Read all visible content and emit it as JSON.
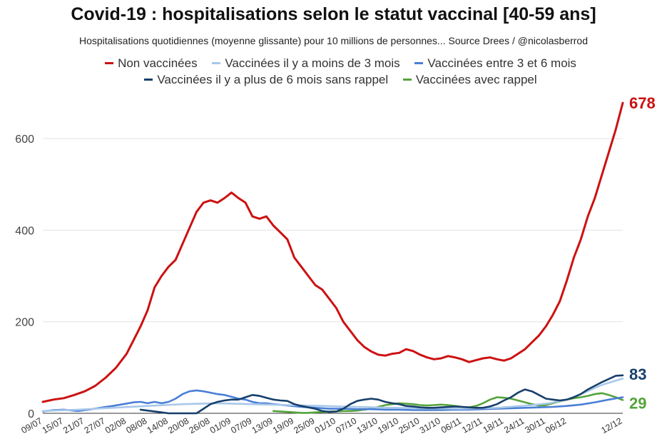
{
  "chart_data": {
    "type": "line",
    "title": "Covid-19 : hospitalisations selon le statut vaccinal [40-59 ans]",
    "subtitle": "Hospitalisations quotidiennes (moyenne glissante) pour 10 millions de personnes... Source Drees / @nicolasberrod",
    "xlabel": "",
    "ylabel": "",
    "ylim": [
      0,
      700
    ],
    "yticks": [
      0,
      200,
      400,
      600
    ],
    "grid": true,
    "legend_position": "top",
    "x_tick_labels": [
      "09/07",
      "15/07",
      "21/07",
      "27/07",
      "02/08",
      "08/08",
      "14/08",
      "20/08",
      "26/08",
      "01/09",
      "07/09",
      "13/09",
      "19/09",
      "25/09",
      "01/10",
      "07/10",
      "13/10",
      "19/10",
      "25/10",
      "31/10",
      "06/11",
      "12/11",
      "18/11",
      "24/11",
      "30/11",
      "06/12",
      "12/12"
    ],
    "n_days": 157,
    "series": [
      {
        "name": "Non vaccinées",
        "color": "#cc1111",
        "end_label": "678",
        "points": [
          [
            0,
            25
          ],
          [
            3,
            30
          ],
          [
            6,
            33
          ],
          [
            9,
            40
          ],
          [
            12,
            48
          ],
          [
            15,
            60
          ],
          [
            18,
            78
          ],
          [
            21,
            100
          ],
          [
            24,
            130
          ],
          [
            26,
            160
          ],
          [
            28,
            190
          ],
          [
            30,
            225
          ],
          [
            32,
            275
          ],
          [
            34,
            300
          ],
          [
            36,
            320
          ],
          [
            38,
            335
          ],
          [
            40,
            370
          ],
          [
            42,
            405
          ],
          [
            44,
            440
          ],
          [
            46,
            460
          ],
          [
            48,
            465
          ],
          [
            50,
            460
          ],
          [
            52,
            470
          ],
          [
            54,
            482
          ],
          [
            56,
            470
          ],
          [
            58,
            460
          ],
          [
            60,
            430
          ],
          [
            62,
            425
          ],
          [
            64,
            430
          ],
          [
            66,
            410
          ],
          [
            68,
            395
          ],
          [
            70,
            380
          ],
          [
            72,
            340
          ],
          [
            74,
            320
          ],
          [
            76,
            300
          ],
          [
            78,
            280
          ],
          [
            80,
            270
          ],
          [
            82,
            250
          ],
          [
            84,
            230
          ],
          [
            86,
            200
          ],
          [
            88,
            180
          ],
          [
            90,
            160
          ],
          [
            92,
            145
          ],
          [
            94,
            135
          ],
          [
            96,
            128
          ],
          [
            98,
            126
          ],
          [
            100,
            130
          ],
          [
            102,
            132
          ],
          [
            104,
            140
          ],
          [
            106,
            136
          ],
          [
            108,
            128
          ],
          [
            110,
            122
          ],
          [
            112,
            118
          ],
          [
            114,
            120
          ],
          [
            116,
            125
          ],
          [
            118,
            122
          ],
          [
            120,
            118
          ],
          [
            122,
            112
          ],
          [
            124,
            116
          ],
          [
            126,
            120
          ],
          [
            128,
            122
          ],
          [
            130,
            118
          ],
          [
            132,
            115
          ],
          [
            134,
            120
          ],
          [
            136,
            130
          ],
          [
            138,
            140
          ],
          [
            140,
            155
          ],
          [
            142,
            170
          ],
          [
            144,
            190
          ],
          [
            146,
            215
          ],
          [
            148,
            245
          ],
          [
            150,
            290
          ],
          [
            152,
            340
          ],
          [
            154,
            380
          ],
          [
            156,
            430
          ],
          [
            158,
            470
          ],
          [
            160,
            520
          ],
          [
            162,
            570
          ],
          [
            164,
            620
          ],
          [
            166,
            678
          ]
        ]
      },
      {
        "name": "Vaccinées il y a moins de 3 mois",
        "color": "#a9c8ea",
        "end_label": "",
        "points": [
          [
            0,
            5
          ],
          [
            10,
            8
          ],
          [
            20,
            12
          ],
          [
            30,
            16
          ],
          [
            40,
            20
          ],
          [
            50,
            22
          ],
          [
            60,
            20
          ],
          [
            70,
            18
          ],
          [
            80,
            16
          ],
          [
            90,
            14
          ],
          [
            100,
            12
          ],
          [
            110,
            11
          ],
          [
            120,
            10
          ],
          [
            130,
            12
          ],
          [
            140,
            18
          ],
          [
            145,
            22
          ],
          [
            150,
            30
          ],
          [
            155,
            45
          ],
          [
            160,
            62
          ],
          [
            166,
            76
          ]
        ]
      },
      {
        "name": "Vaccinées entre 3 et 6 mois",
        "color": "#4a7fd6",
        "end_label": "",
        "points": [
          [
            0,
            4
          ],
          [
            3,
            7
          ],
          [
            6,
            8
          ],
          [
            10,
            5
          ],
          [
            14,
            9
          ],
          [
            18,
            14
          ],
          [
            20,
            16
          ],
          [
            23,
            20
          ],
          [
            26,
            24
          ],
          [
            28,
            25
          ],
          [
            30,
            22
          ],
          [
            32,
            25
          ],
          [
            34,
            22
          ],
          [
            36,
            25
          ],
          [
            38,
            32
          ],
          [
            40,
            42
          ],
          [
            42,
            48
          ],
          [
            44,
            50
          ],
          [
            46,
            48
          ],
          [
            48,
            45
          ],
          [
            50,
            42
          ],
          [
            52,
            40
          ],
          [
            54,
            36
          ],
          [
            56,
            32
          ],
          [
            58,
            30
          ],
          [
            60,
            25
          ],
          [
            62,
            22
          ],
          [
            64,
            22
          ],
          [
            66,
            20
          ],
          [
            70,
            17
          ],
          [
            74,
            14
          ],
          [
            78,
            12
          ],
          [
            82,
            10
          ],
          [
            86,
            10
          ],
          [
            90,
            9
          ],
          [
            94,
            9
          ],
          [
            98,
            8
          ],
          [
            102,
            8
          ],
          [
            106,
            7
          ],
          [
            110,
            7
          ],
          [
            114,
            7
          ],
          [
            118,
            8
          ],
          [
            122,
            8
          ],
          [
            126,
            9
          ],
          [
            130,
            10
          ],
          [
            134,
            11
          ],
          [
            138,
            12
          ],
          [
            142,
            13
          ],
          [
            146,
            14
          ],
          [
            150,
            16
          ],
          [
            154,
            19
          ],
          [
            158,
            24
          ],
          [
            162,
            30
          ],
          [
            166,
            35
          ]
        ]
      },
      {
        "name": "Vaccinées il y a plus de 6 mois sans rappel",
        "color": "#173f6b",
        "end_label": "83",
        "points": [
          [
            28,
            8
          ],
          [
            30,
            6
          ],
          [
            32,
            4
          ],
          [
            34,
            2
          ],
          [
            36,
            0
          ],
          [
            44,
            0
          ],
          [
            46,
            10
          ],
          [
            48,
            20
          ],
          [
            50,
            25
          ],
          [
            52,
            28
          ],
          [
            54,
            30
          ],
          [
            56,
            30
          ],
          [
            58,
            35
          ],
          [
            60,
            40
          ],
          [
            62,
            38
          ],
          [
            64,
            34
          ],
          [
            66,
            30
          ],
          [
            68,
            28
          ],
          [
            70,
            27
          ],
          [
            72,
            20
          ],
          [
            74,
            16
          ],
          [
            76,
            13
          ],
          [
            78,
            10
          ],
          [
            80,
            5
          ],
          [
            82,
            3
          ],
          [
            84,
            4
          ],
          [
            86,
            10
          ],
          [
            88,
            20
          ],
          [
            90,
            27
          ],
          [
            92,
            30
          ],
          [
            94,
            32
          ],
          [
            96,
            30
          ],
          [
            98,
            25
          ],
          [
            100,
            22
          ],
          [
            102,
            20
          ],
          [
            104,
            16
          ],
          [
            106,
            15
          ],
          [
            108,
            13
          ],
          [
            110,
            12
          ],
          [
            112,
            12
          ],
          [
            114,
            13
          ],
          [
            116,
            14
          ],
          [
            118,
            15
          ],
          [
            120,
            14
          ],
          [
            122,
            13
          ],
          [
            124,
            12
          ],
          [
            126,
            12
          ],
          [
            128,
            15
          ],
          [
            130,
            20
          ],
          [
            132,
            28
          ],
          [
            134,
            35
          ],
          [
            136,
            45
          ],
          [
            138,
            52
          ],
          [
            140,
            48
          ],
          [
            142,
            40
          ],
          [
            144,
            32
          ],
          [
            146,
            30
          ],
          [
            148,
            28
          ],
          [
            150,
            30
          ],
          [
            152,
            35
          ],
          [
            154,
            42
          ],
          [
            156,
            52
          ],
          [
            158,
            60
          ],
          [
            160,
            68
          ],
          [
            162,
            75
          ],
          [
            164,
            82
          ],
          [
            166,
            83
          ]
        ]
      },
      {
        "name": "Vaccinées avec rappel",
        "color": "#55a33b",
        "end_label": "29",
        "points": [
          [
            66,
            5
          ],
          [
            68,
            4
          ],
          [
            70,
            3
          ],
          [
            72,
            2
          ],
          [
            74,
            1
          ],
          [
            76,
            1
          ],
          [
            78,
            2
          ],
          [
            80,
            3
          ],
          [
            82,
            4
          ],
          [
            84,
            4
          ],
          [
            86,
            5
          ],
          [
            88,
            5
          ],
          [
            90,
            6
          ],
          [
            92,
            8
          ],
          [
            94,
            10
          ],
          [
            96,
            14
          ],
          [
            98,
            18
          ],
          [
            100,
            20
          ],
          [
            102,
            22
          ],
          [
            104,
            21
          ],
          [
            106,
            20
          ],
          [
            108,
            18
          ],
          [
            110,
            17
          ],
          [
            112,
            18
          ],
          [
            114,
            19
          ],
          [
            116,
            18
          ],
          [
            118,
            16
          ],
          [
            120,
            14
          ],
          [
            122,
            13
          ],
          [
            124,
            16
          ],
          [
            126,
            22
          ],
          [
            128,
            30
          ],
          [
            130,
            35
          ],
          [
            132,
            34
          ],
          [
            134,
            32
          ],
          [
            136,
            28
          ],
          [
            138,
            24
          ],
          [
            140,
            20
          ],
          [
            142,
            17
          ],
          [
            144,
            18
          ],
          [
            146,
            22
          ],
          [
            148,
            26
          ],
          [
            150,
            30
          ],
          [
            152,
            33
          ],
          [
            154,
            35
          ],
          [
            156,
            38
          ],
          [
            158,
            42
          ],
          [
            160,
            44
          ],
          [
            162,
            40
          ],
          [
            164,
            35
          ],
          [
            166,
            29
          ]
        ]
      }
    ]
  }
}
